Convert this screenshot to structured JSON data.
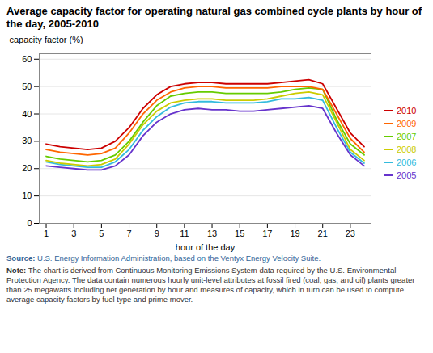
{
  "chart_data": {
    "type": "line",
    "title": "Average capacity factor for operating natural gas combined cycle plants by hour of the day, 2005-2010",
    "xlabel": "hour of the day",
    "ylabel": "capacity factor (%)",
    "annotations": [
      "Source: U.S. Energy Information Administration, based on the Ventyx Energy Velocity Suite.",
      "Note: The chart is derived from Continuous Monitoring Emissions System data required by the U.S. Environmental Protection Agency. The data contain numerous hourly unit-level attributes at fossil fired (coal, gas, and oil) plants greater than 25 megawatts including net generation by hour and measures of capacity, which in turn can be used to compute average capacity factors by fuel type and prime mover."
    ],
    "x": [
      1,
      2,
      3,
      4,
      5,
      6,
      7,
      8,
      9,
      10,
      11,
      12,
      13,
      14,
      15,
      16,
      17,
      18,
      19,
      20,
      21,
      22,
      23,
      24
    ],
    "series": [
      {
        "name": "2010",
        "color": "#cc0000",
        "values": [
          29,
          28,
          27.5,
          27,
          27.5,
          30,
          35,
          42,
          47,
          50,
          51,
          51.5,
          51.5,
          51,
          51,
          51,
          51,
          51.5,
          52,
          52.5,
          51,
          42,
          33,
          28
        ]
      },
      {
        "name": "2009",
        "color": "#ff6600",
        "values": [
          27,
          26,
          25.5,
          25,
          25.5,
          27.5,
          33,
          40,
          45,
          48,
          49.5,
          50,
          50,
          49.5,
          49.5,
          49.5,
          49.5,
          50,
          50,
          50,
          49,
          40,
          31,
          26
        ]
      },
      {
        "name": "2007",
        "color": "#66cc00",
        "values": [
          24.5,
          23.5,
          23,
          22.5,
          23,
          25,
          30,
          37,
          43,
          46.5,
          47.5,
          48,
          48,
          47.5,
          47.5,
          47.5,
          47.5,
          48,
          49,
          49.5,
          49,
          38,
          29,
          25
        ]
      },
      {
        "name": "2008",
        "color": "#cccc00",
        "values": [
          23,
          22,
          21.5,
          21,
          21.5,
          23.5,
          29,
          36,
          41,
          44,
          45,
          45.5,
          45.5,
          45,
          45,
          45,
          45.5,
          46.5,
          47.5,
          48,
          47,
          37,
          27,
          23
        ]
      },
      {
        "name": "2006",
        "color": "#33bbdd",
        "values": [
          22.5,
          21.5,
          21,
          20.5,
          20.5,
          22.5,
          27,
          34,
          39,
          42.5,
          44,
          44.5,
          44.5,
          44,
          44,
          44,
          44.5,
          45.5,
          45.5,
          46,
          45,
          35,
          26,
          22
        ]
      },
      {
        "name": "2005",
        "color": "#6633cc",
        "values": [
          21,
          20.5,
          20,
          19.5,
          19.5,
          21,
          25,
          32,
          37,
          40,
          41.5,
          42,
          41.5,
          41.5,
          41,
          41,
          41.5,
          42,
          42.5,
          43,
          42,
          33,
          25,
          21
        ]
      }
    ],
    "xlim": [
      0.5,
      24.5
    ],
    "xticks": [
      1,
      3,
      5,
      7,
      9,
      11,
      13,
      15,
      17,
      19,
      21,
      23
    ],
    "ylim": [
      0,
      62
    ],
    "yticks": [
      0,
      10,
      20,
      30,
      40,
      50,
      60
    ],
    "grid": true,
    "legend": "right"
  }
}
